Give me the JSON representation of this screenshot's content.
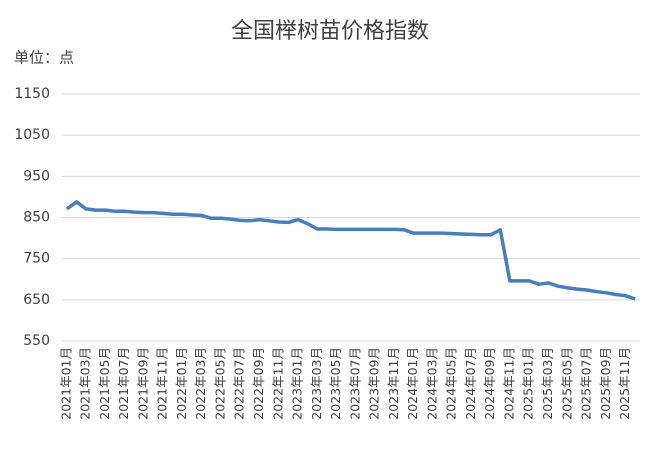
{
  "chart_data": {
    "type": "line",
    "title": "全国榉树苗价格指数",
    "unit_label": "单位：点",
    "categories": [
      "2021年01月",
      null,
      "2021年03月",
      null,
      "2021年05月",
      null,
      "2021年07月",
      null,
      "2021年09月",
      null,
      "2021年11月",
      null,
      "2022年01月",
      null,
      "2022年03月",
      null,
      "2022年05月",
      null,
      "2022年07月",
      null,
      "2022年09月",
      null,
      "2022年11月",
      null,
      "2023年01月",
      null,
      "2023年03月",
      null,
      "2023年05月",
      null,
      "2023年07月",
      null,
      "2023年09月",
      null,
      "2023年11月",
      null,
      "2024年01月",
      null,
      "2024年03月",
      null,
      "2024年05月",
      null,
      "2024年07月",
      null,
      "2024年09月",
      null,
      "2024年11月",
      null,
      "2025年01月",
      null,
      "2025年03月",
      null,
      "2025年05月",
      null,
      "2025年07月",
      null,
      "2025年09月",
      null,
      "2025年11月",
      null
    ],
    "values": [
      871,
      888,
      871,
      868,
      868,
      865,
      865,
      863,
      862,
      862,
      860,
      858,
      858,
      856,
      855,
      848,
      848,
      846,
      843,
      842,
      845,
      842,
      839,
      838,
      845,
      835,
      822,
      822,
      821,
      821,
      821,
      821,
      821,
      821,
      821,
      820,
      812,
      812,
      812,
      812,
      811,
      810,
      809,
      808,
      808,
      820,
      696,
      696,
      696,
      688,
      691,
      683,
      679,
      676,
      674,
      670,
      667,
      663,
      660,
      652
    ],
    "color": "#4a7ebb",
    "ylim": [
      550,
      1150
    ],
    "yticks": [
      550,
      650,
      750,
      850,
      950,
      1050,
      1150
    ],
    "grid": true
  }
}
